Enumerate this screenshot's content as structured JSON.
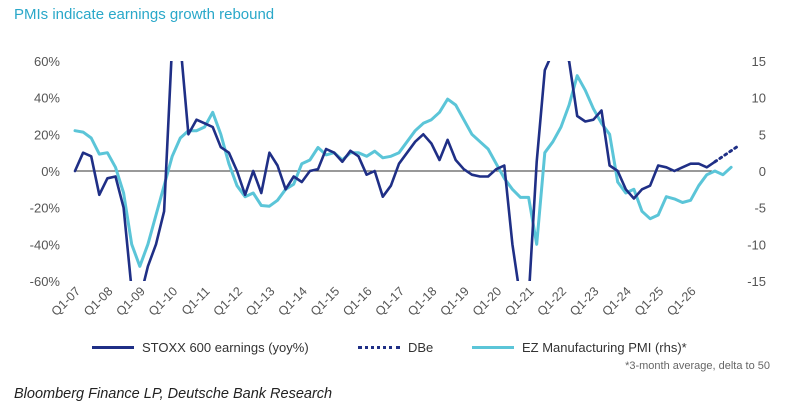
{
  "title": "PMIs indicate earnings growth rebound",
  "source": "Bloomberg Finance LP, Deutsche Bank Research",
  "footnote": "*3-month average, delta to 50",
  "colors": {
    "earnings": "#1f2f86",
    "dbe": "#1f2f86",
    "pmi": "#5bc5d8",
    "title": "#2aa8c9"
  },
  "chart_data": {
    "type": "line",
    "x_start": "Q1-07",
    "x_tick_labels": [
      "Q1-07",
      "Q1-08",
      "Q1-09",
      "Q1-10",
      "Q1-11",
      "Q1-12",
      "Q1-13",
      "Q1-14",
      "Q1-15",
      "Q1-16",
      "Q1-17",
      "Q1-18",
      "Q1-19",
      "Q1-20",
      "Q1-21",
      "Q1-22",
      "Q1-23",
      "Q1-24",
      "Q1-25",
      "Q1-26"
    ],
    "y_left": {
      "range": [
        -60,
        60
      ],
      "ticks": [
        "60%",
        "40%",
        "20%",
        "0%",
        "-20%",
        "-40%",
        "-60%"
      ]
    },
    "y_right": {
      "range": [
        -15,
        15
      ],
      "ticks": [
        "15",
        "10",
        "5",
        "0",
        "-5",
        "-10",
        "-15"
      ]
    },
    "grid": false,
    "legend_position": "bottom",
    "series": [
      {
        "name": "STOXX 600 earnings (yoy%)",
        "axis": "left",
        "style": "solid",
        "values": [
          0,
          10,
          8,
          -13,
          -4,
          -3,
          -20,
          -65,
          -70,
          -52,
          -40,
          -22,
          70,
          70,
          20,
          28,
          26,
          24,
          13,
          10,
          0,
          -13,
          0,
          -12,
          10,
          3,
          -10,
          -3,
          -6,
          0,
          1,
          12,
          10,
          5,
          11,
          8,
          -2,
          0,
          -14,
          -8,
          4,
          10,
          16,
          20,
          15,
          6,
          17,
          6,
          1,
          -2,
          -3,
          -3,
          1,
          3,
          -40,
          -70,
          -70,
          5,
          55,
          65,
          65,
          60,
          30,
          27,
          28,
          33,
          3,
          0,
          -10,
          -15,
          -10,
          -8,
          3,
          2,
          0,
          2,
          4,
          4,
          2,
          5
        ]
      },
      {
        "name": "DBe",
        "axis": "left",
        "style": "dotted",
        "start_index": 79,
        "values": [
          5,
          8,
          11,
          14
        ]
      },
      {
        "name": "EZ Manufacturing PMI (rhs)*",
        "axis": "right",
        "style": "solid",
        "values": [
          5.5,
          5.3,
          4.5,
          2.3,
          2.5,
          0.5,
          -3,
          -10,
          -13,
          -10,
          -6,
          -2,
          2,
          4.5,
          5.5,
          5.5,
          6,
          8,
          5,
          1,
          -2,
          -3.5,
          -3,
          -4.7,
          -4.8,
          -4,
          -2.5,
          -1.8,
          1,
          1.5,
          3.2,
          2.2,
          2.5,
          1.5,
          2.5,
          2.5,
          2,
          2.7,
          1.8,
          2,
          2.5,
          4,
          5.5,
          6.5,
          7,
          8,
          9.8,
          9,
          7,
          5,
          4,
          3,
          1,
          -1,
          -2.5,
          -3.6,
          -3.6,
          -10,
          2.5,
          4,
          6,
          9,
          13,
          11,
          8.5,
          6.5,
          5,
          -1.5,
          -3,
          -2.5,
          -5.5,
          -6.5,
          -6,
          -3.5,
          -3.8,
          -4.3,
          -4,
          -2,
          -0.5,
          0,
          -0.5,
          0.5
        ]
      }
    ]
  },
  "legend": [
    {
      "label": "STOXX 600 earnings (yoy%)"
    },
    {
      "label": "DBe"
    },
    {
      "label": "EZ Manufacturing PMI (rhs)*"
    }
  ]
}
